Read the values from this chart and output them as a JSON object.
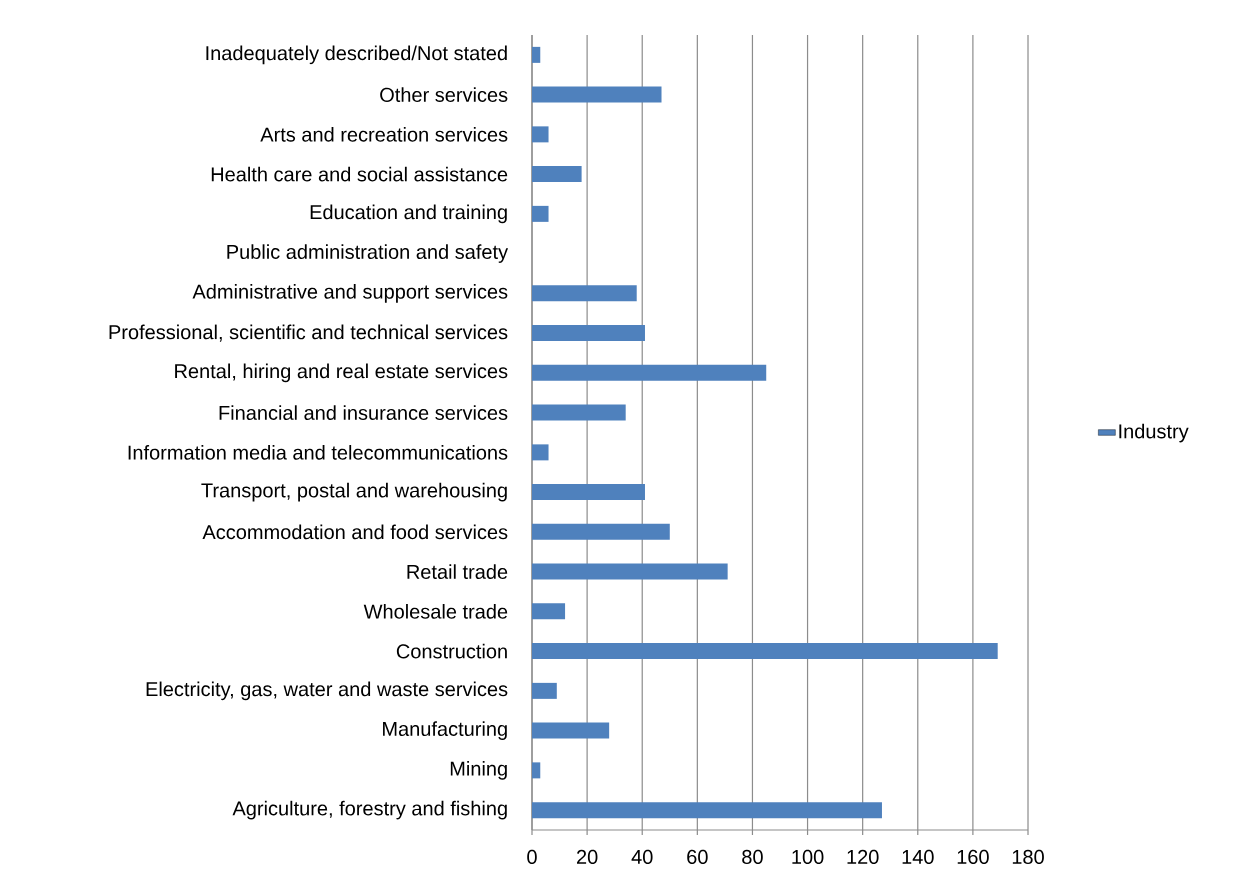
{
  "chart_data": {
    "type": "bar",
    "orientation": "horizontal",
    "categories": [
      "Inadequately described/Not stated",
      "Other services",
      "Arts and recreation services",
      "Health care and social assistance",
      "Education and training",
      "Public administration and safety",
      "Administrative and support services",
      "Professional, scientific and technical services",
      "Rental, hiring and real estate services",
      "Financial and insurance services",
      "Information media and telecommunications",
      "Transport, postal and warehousing",
      "Accommodation and food services",
      "Retail trade",
      "Wholesale trade",
      "Construction",
      "Electricity, gas, water and waste services",
      "Manufacturing",
      "Mining",
      "Agriculture, forestry and fishing"
    ],
    "series": [
      {
        "name": "Industry",
        "color": "#4f81bd",
        "values": [
          3,
          47,
          6,
          18,
          6,
          0,
          38,
          41,
          85,
          34,
          6,
          41,
          50,
          71,
          12,
          169,
          9,
          28,
          3,
          127
        ]
      }
    ],
    "xlim": [
      0,
      180
    ],
    "xticks": [
      0,
      20,
      40,
      60,
      80,
      100,
      120,
      140,
      160,
      180
    ],
    "grid": "x",
    "legend": "right"
  }
}
